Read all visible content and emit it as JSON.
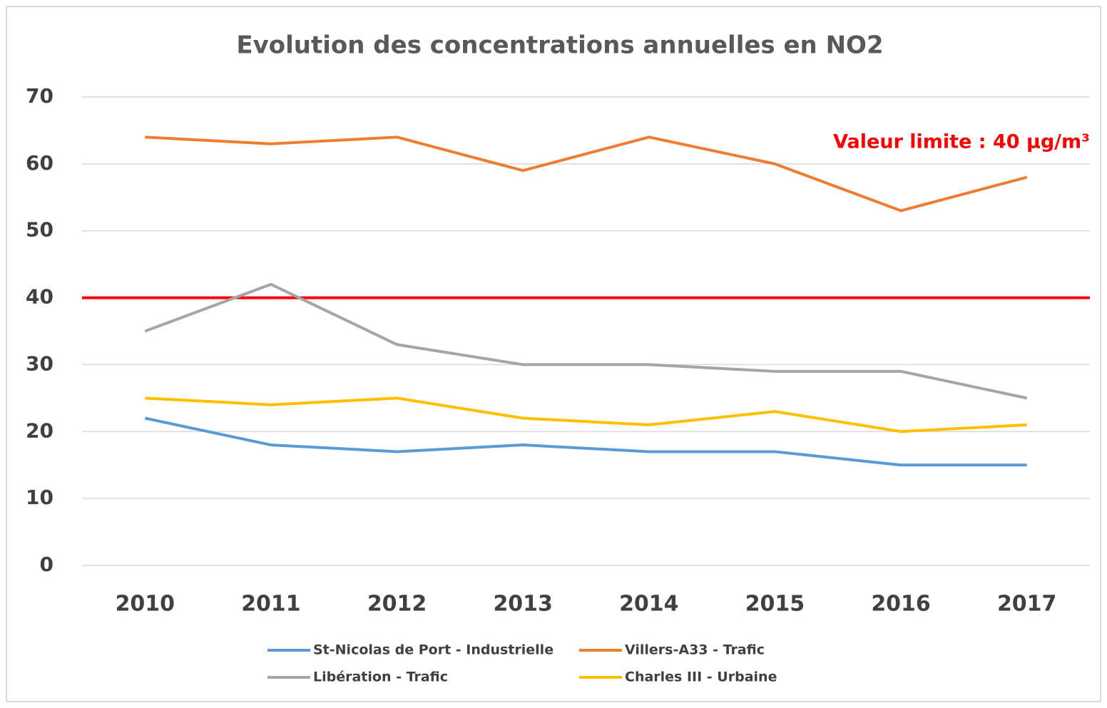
{
  "chart_data": {
    "type": "line",
    "title": "Evolution des concentrations annuelles en NO2",
    "categories": [
      "2010",
      "2011",
      "2012",
      "2013",
      "2014",
      "2015",
      "2016",
      "2017"
    ],
    "series": [
      {
        "name": "St-Nicolas de Port - Industrielle",
        "color": "#5b9bd5",
        "values": [
          22,
          18,
          17,
          18,
          17,
          17,
          15,
          15
        ]
      },
      {
        "name": "Villers-A33 - Trafic",
        "color": "#ed7d31",
        "values": [
          64,
          63,
          64,
          59,
          64,
          60,
          53,
          58
        ]
      },
      {
        "name": "Libération - Trafic",
        "color": "#a5a5a5",
        "values": [
          35,
          42,
          33,
          30,
          30,
          29,
          29,
          25
        ]
      },
      {
        "name": "Charles III - Urbaine",
        "color": "#ffc000",
        "values": [
          25,
          24,
          25,
          22,
          21,
          23,
          20,
          21
        ]
      }
    ],
    "reference_line": {
      "value": 40,
      "label": "Valeur limite : 40 µg/m³",
      "color": "#ff0000"
    },
    "ylim": [
      0,
      70
    ],
    "yticks": [
      0,
      10,
      20,
      30,
      40,
      50,
      60,
      70
    ],
    "grid": true,
    "legend": "bottom"
  }
}
